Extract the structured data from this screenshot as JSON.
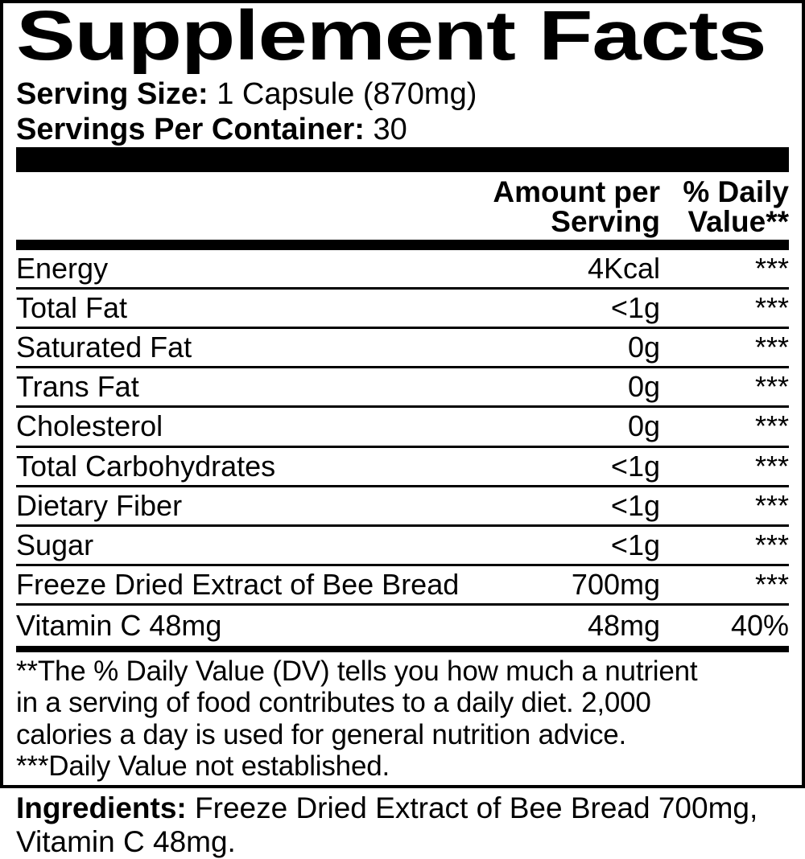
{
  "colors": {
    "text": "#000000",
    "background": "#ffffff"
  },
  "title": "Supplement Facts",
  "serving": {
    "size_label": "Serving Size:",
    "size_value": " 1 Capsule (870mg)",
    "container_label": "Servings Per Container:",
    "container_value": " 30"
  },
  "table": {
    "header": {
      "amount_lines": [
        "Amount per",
        "Serving"
      ],
      "dv_lines": [
        "% Daily",
        "Value**"
      ]
    },
    "rows": [
      {
        "name": "Energy",
        "amount": "4Kcal",
        "dv": "***"
      },
      {
        "name": "Total Fat",
        "amount": "<1g",
        "dv": "***"
      },
      {
        "name": "Saturated Fat",
        "amount": "0g",
        "dv": "***"
      },
      {
        "name": "Trans Fat",
        "amount": "0g",
        "dv": "***"
      },
      {
        "name": "Cholesterol",
        "amount": "0g",
        "dv": "***"
      },
      {
        "name": "Total Carbohydrates",
        "amount": "<1g",
        "dv": "***"
      },
      {
        "name": "Dietary Fiber",
        "amount": "<1g",
        "dv": "***"
      },
      {
        "name": "Sugar",
        "amount": "<1g",
        "dv": "***"
      },
      {
        "name": "Freeze Dried Extract of Bee Bread",
        "amount": "700mg",
        "dv": "***"
      },
      {
        "name": "Vitamin C 48mg",
        "amount": "48mg",
        "dv": "40%"
      }
    ]
  },
  "footnote": {
    "lines": [
      "**The % Daily Value (DV) tells you how much a nutrient",
      "in a serving of food contributes to a daily diet. 2,000",
      "calories a day is used for general nutrition advice.",
      "***Daily Value not established."
    ]
  },
  "ingredients": {
    "label": "Ingredients:",
    "value": " Freeze Dried Extract of Bee Bread 700mg, Vitamin C 48mg."
  }
}
